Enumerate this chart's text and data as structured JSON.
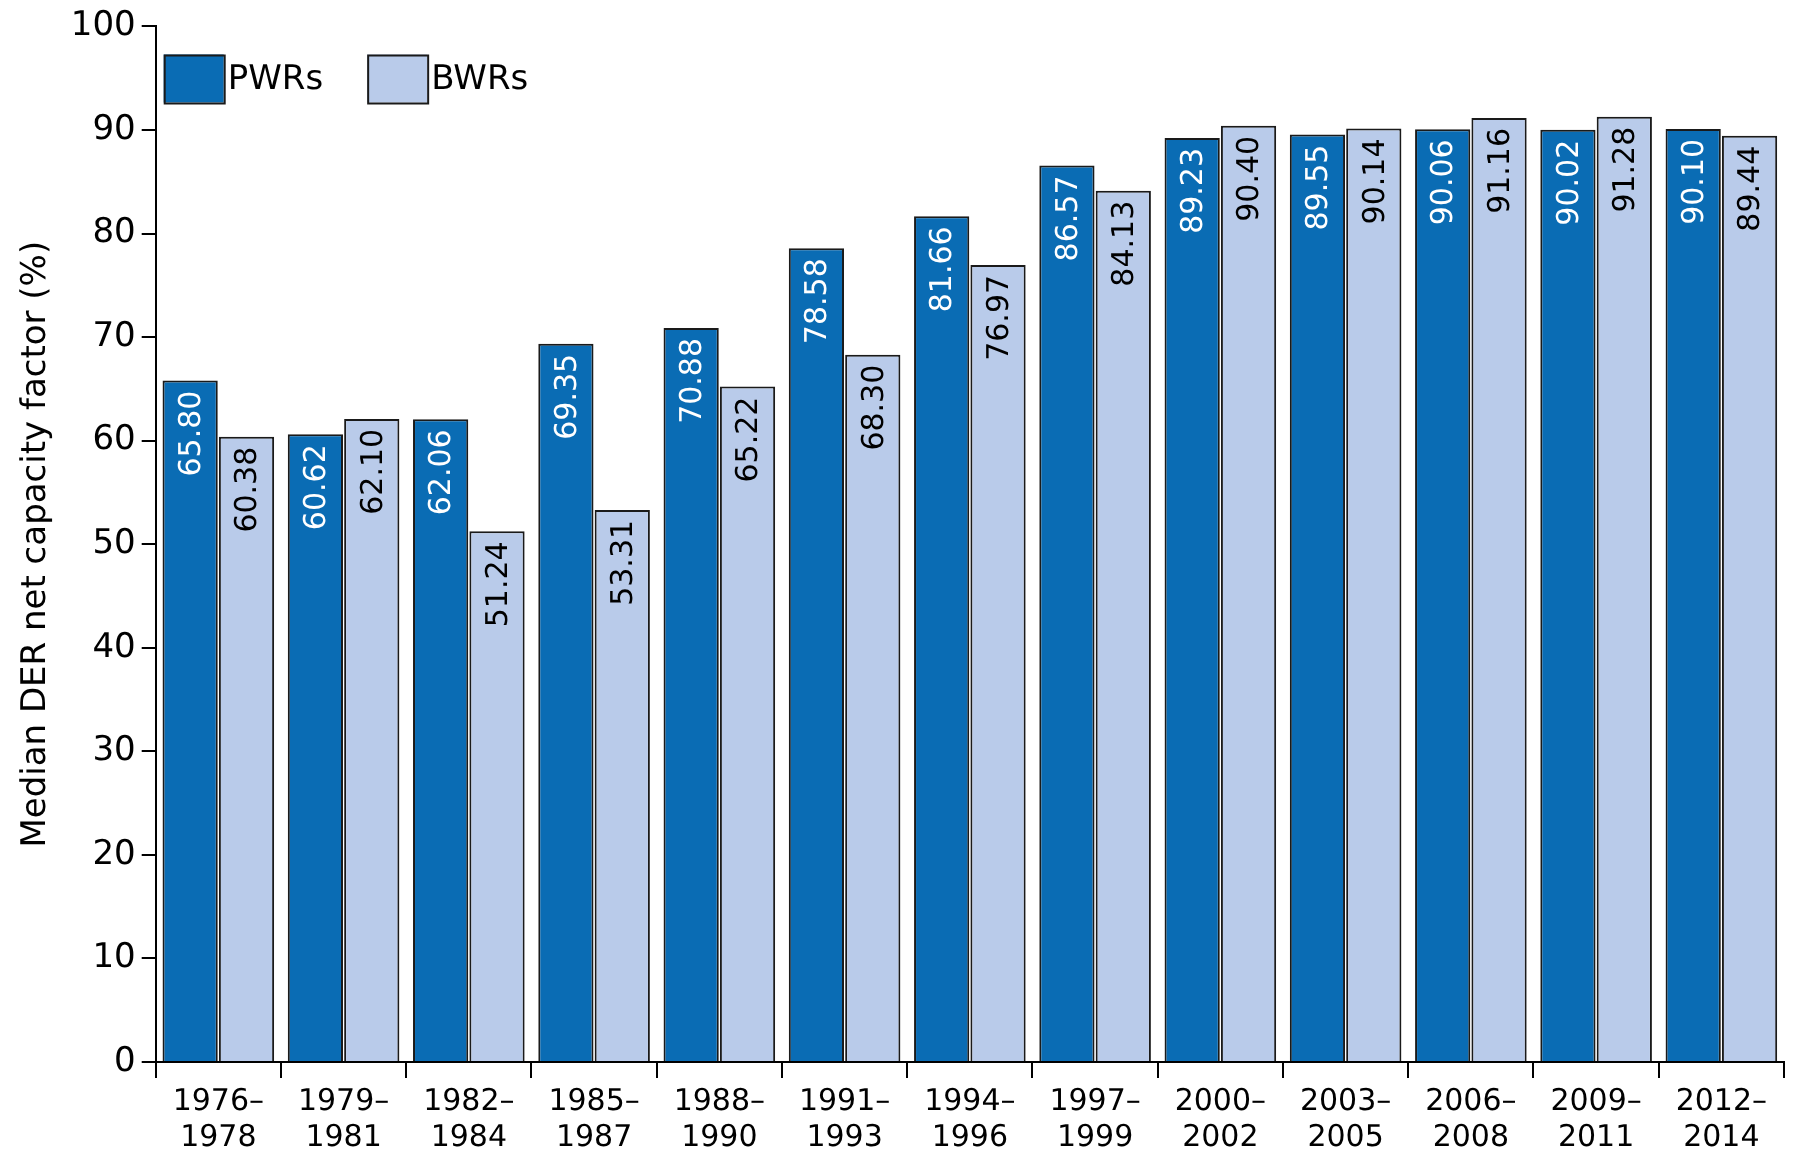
{
  "chart_data": {
    "type": "bar",
    "ylabel": "Median DER net capacity factor (%)",
    "categories": [
      "1976–\n1978",
      "1979–\n1981",
      "1982–\n1984",
      "1985–\n1987",
      "1988–\n1990",
      "1991–\n1993",
      "1994–\n1996",
      "1997–\n1999",
      "2000–\n2002",
      "2003–\n2005",
      "2006–\n2008",
      "2009–\n2011",
      "2012–\n2014"
    ],
    "series": [
      {
        "name": "PWRs",
        "color": "#0a6cb4",
        "values": [
          65.8,
          60.62,
          62.06,
          69.35,
          70.88,
          78.58,
          81.66,
          86.57,
          89.23,
          89.55,
          90.06,
          90.02,
          90.1
        ],
        "value_labels": [
          "65.80",
          "60.62",
          "62.06",
          "69.35",
          "70.88",
          "78.58",
          "81.66",
          "86.57",
          "89.23",
          "89.55",
          "90.06",
          "90.02",
          "90.10"
        ]
      },
      {
        "name": "BWRs",
        "color": "#b9cbea",
        "values": [
          60.38,
          62.1,
          51.24,
          53.31,
          65.22,
          68.3,
          76.97,
          84.13,
          90.4,
          90.14,
          91.16,
          91.28,
          89.44
        ],
        "value_labels": [
          "60.38",
          "62.10",
          "51.24",
          "53.31",
          "65.22",
          "68.30",
          "76.97",
          "84.13",
          "90.40",
          "90.14",
          "91.16",
          "91.28",
          "89.44"
        ]
      }
    ],
    "ylim": [
      0,
      100
    ],
    "yticks": [
      0,
      10,
      20,
      30,
      40,
      50,
      60,
      70,
      80,
      90,
      100
    ],
    "grid": false,
    "legend": "top left"
  }
}
